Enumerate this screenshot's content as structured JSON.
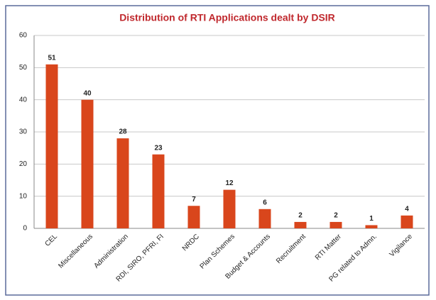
{
  "chart_data": {
    "type": "bar",
    "title": "Distribution of RTI Applications dealt by DSIR",
    "categories": [
      "CEL",
      "Miscellaneous",
      "Administration",
      "RDI, SIRO, PFRI, FI",
      "NRDC",
      "Plan Schemes",
      "Budget & Accounts",
      "Recruitment",
      "RTI Matter",
      "PG related to Admn.",
      "Vigilance"
    ],
    "values": [
      51,
      40,
      28,
      23,
      7,
      12,
      6,
      2,
      2,
      1,
      4
    ],
    "color": "#d9461c",
    "ylim": [
      0,
      60
    ],
    "yticks": [
      0,
      10,
      20,
      30,
      40,
      50,
      60
    ],
    "grid": true
  }
}
